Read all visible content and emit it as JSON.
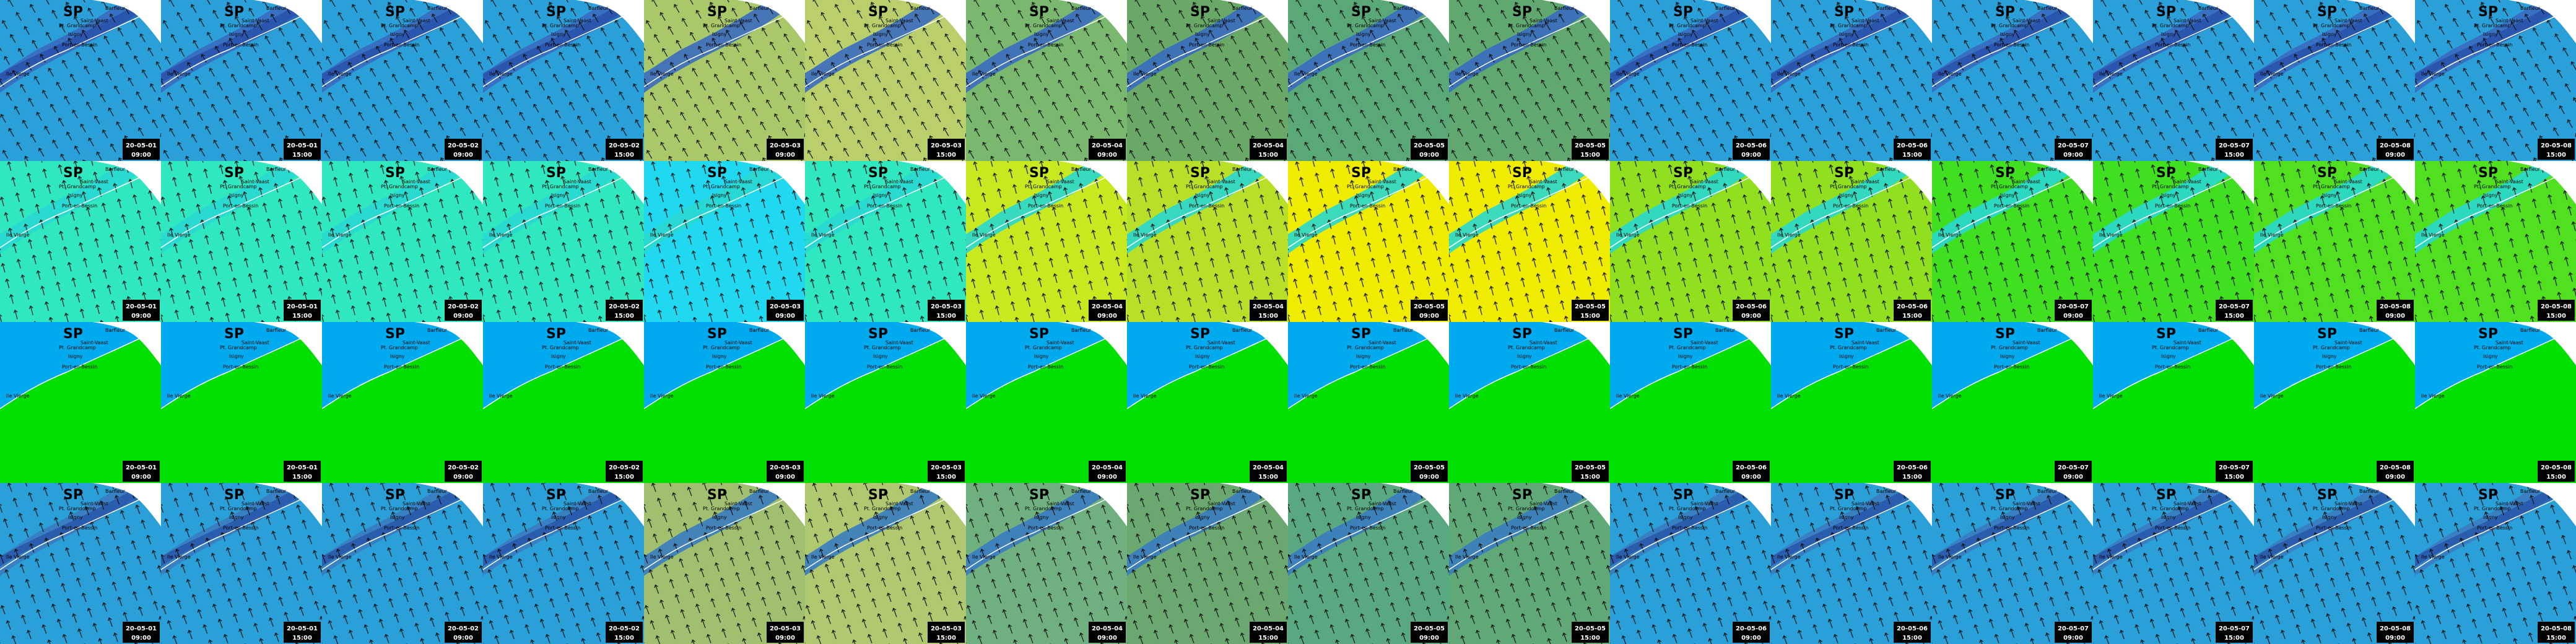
{
  "title": "SP",
  "places": [
    "Barfleur",
    "Pt. Grandcamp",
    "Saint-Vaast",
    "Isigny",
    "Port-en-Bessin",
    "Ile Vierge"
  ],
  "timestamps": [
    {
      "date": "20-05-01",
      "time": "09:00"
    },
    {
      "date": "20-05-01",
      "time": "15:00"
    },
    {
      "date": "20-05-02",
      "time": "09:00"
    },
    {
      "date": "20-05-02",
      "time": "15:00"
    },
    {
      "date": "20-05-03",
      "time": "09:00"
    },
    {
      "date": "20-05-03",
      "time": "15:00"
    },
    {
      "date": "20-05-04",
      "time": "09:00"
    },
    {
      "date": "20-05-04",
      "time": "15:00"
    },
    {
      "date": "20-05-05",
      "time": "09:00"
    },
    {
      "date": "20-05-05",
      "time": "15:00"
    },
    {
      "date": "20-05-06",
      "time": "09:00"
    },
    {
      "date": "20-05-06",
      "time": "15:00"
    },
    {
      "date": "20-05-07",
      "time": "09:00"
    },
    {
      "date": "20-05-07",
      "time": "15:00"
    },
    {
      "date": "20-05-08",
      "time": "09:00"
    },
    {
      "date": "20-05-08",
      "time": "15:00"
    }
  ]
}
